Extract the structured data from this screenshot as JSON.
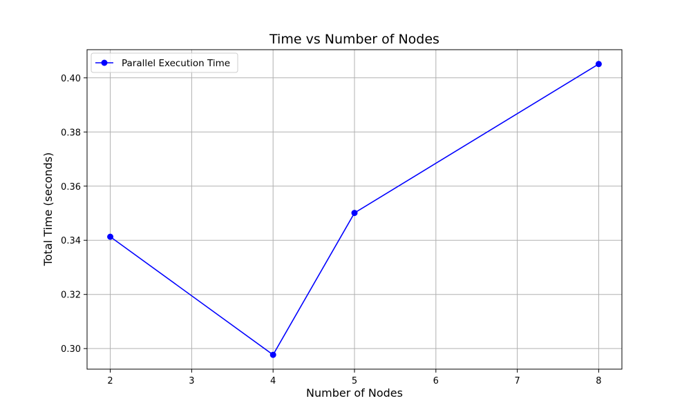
{
  "chart_data": {
    "type": "line",
    "title": "Time vs Number of Nodes",
    "xlabel": "Number of Nodes",
    "ylabel": "Total Time (seconds)",
    "x": [
      2,
      4,
      5,
      8
    ],
    "series": [
      {
        "name": "Parallel Execution Time",
        "values": [
          0.3413,
          0.2977,
          0.3501,
          0.4051
        ],
        "color": "#0000ff",
        "marker": "circle"
      }
    ],
    "xticks": [
      2,
      3,
      4,
      5,
      6,
      7,
      8
    ],
    "xtick_labels": [
      "2",
      "3",
      "4",
      "5",
      "6",
      "7",
      "8"
    ],
    "yticks": [
      0.3,
      0.32,
      0.34,
      0.36,
      0.38,
      0.4
    ],
    "ytick_labels": [
      "0.30",
      "0.32",
      "0.34",
      "0.36",
      "0.38",
      "0.40"
    ],
    "xlim": [
      1.715,
      8.285
    ],
    "ylim": [
      0.2924,
      0.4104
    ],
    "grid": true,
    "legend": "top-left"
  }
}
